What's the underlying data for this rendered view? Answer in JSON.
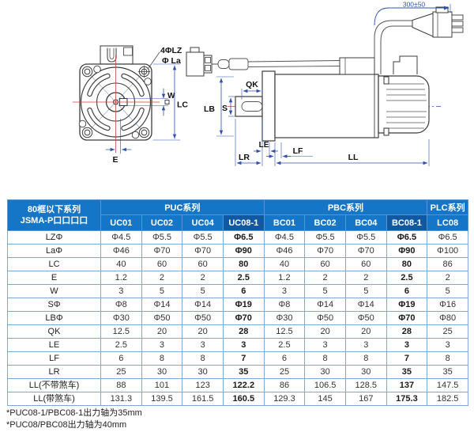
{
  "diagram": {
    "front": {
      "bolt_label": "4ΦLZ",
      "pilot_label": "Φ La",
      "w": "W",
      "lc": "LC",
      "e": "E"
    },
    "side": {
      "qk": "QK",
      "lb": "LB",
      "s": "S",
      "le": "LE",
      "lr": "LR",
      "lf": "LF",
      "ll": "LL",
      "cable_length": "300±50"
    }
  },
  "table": {
    "corner_title_line1": "80框以下系列",
    "corner_title_line2": "JSMA-P口口口口",
    "groups": [
      {
        "label": "PUC系列",
        "span": 4
      },
      {
        "label": "PBC系列",
        "span": 4
      },
      {
        "label": "PLC系列",
        "span": 1
      }
    ],
    "columns": [
      "UC01",
      "UC02",
      "UC04",
      "UC08-1",
      "BC01",
      "BC02",
      "BC04",
      "BC08-1",
      "LC08"
    ],
    "highlight_columns": [
      "UC08-1",
      "BC08-1"
    ],
    "rows": [
      {
        "label": "LZΦ",
        "values": [
          "Φ4.5",
          "Φ5.5",
          "Φ5.5",
          "Φ6.5",
          "Φ4.5",
          "Φ5.5",
          "Φ5.5",
          "Φ6.5",
          "Φ6.5"
        ]
      },
      {
        "label": "LaΦ",
        "values": [
          "Φ46",
          "Φ70",
          "Φ70",
          "Φ90",
          "Φ46",
          "Φ70",
          "Φ70",
          "Φ90",
          "Φ100"
        ]
      },
      {
        "label": "LC",
        "values": [
          "40",
          "60",
          "60",
          "80",
          "40",
          "60",
          "60",
          "80",
          "86"
        ]
      },
      {
        "label": "E",
        "values": [
          "1.2",
          "2",
          "2",
          "2.5",
          "1.2",
          "2",
          "2",
          "2.5",
          "2"
        ]
      },
      {
        "label": "W",
        "values": [
          "3",
          "5",
          "5",
          "6",
          "3",
          "5",
          "5",
          "6",
          "5"
        ]
      },
      {
        "label": "SΦ",
        "values": [
          "Φ8",
          "Φ14",
          "Φ14",
          "Φ19",
          "Φ8",
          "Φ14",
          "Φ14",
          "Φ19",
          "Φ16"
        ]
      },
      {
        "label": "LBΦ",
        "values": [
          "Φ30",
          "Φ50",
          "Φ50",
          "Φ70",
          "Φ30",
          "Φ50",
          "Φ50",
          "Φ70",
          "Φ80"
        ]
      },
      {
        "label": "QK",
        "values": [
          "12.5",
          "20",
          "20",
          "28",
          "12.5",
          "20",
          "20",
          "28",
          "25"
        ]
      },
      {
        "label": "LE",
        "values": [
          "2.5",
          "3",
          "3",
          "3",
          "2.5",
          "3",
          "3",
          "3",
          "3"
        ]
      },
      {
        "label": "LF",
        "values": [
          "6",
          "8",
          "8",
          "7",
          "6",
          "8",
          "8",
          "7",
          "8"
        ]
      },
      {
        "label": "LR",
        "values": [
          "25",
          "30",
          "30",
          "35",
          "25",
          "30",
          "30",
          "35",
          "35"
        ]
      },
      {
        "label": "LL(不带煞车)",
        "values": [
          "88",
          "101",
          "123",
          "122.2",
          "86",
          "106.5",
          "128.5",
          "137",
          "147.5"
        ]
      },
      {
        "label": "LL(带煞车)",
        "values": [
          "131.3",
          "139.5",
          "161.5",
          "160.5",
          "129.3",
          "145",
          "167",
          "175.3",
          "182.5"
        ]
      }
    ]
  },
  "footnotes": [
    "*PUC08-1/PBC08-1出力轴为35mm",
    "*PUC08/PBC08出力轴为40mm"
  ],
  "colors": {
    "header_blue": "#1576c8",
    "header_highlight": "#1059a2",
    "table_border": "#7ba8da",
    "dimension_blue": "#3050b0",
    "centerline_red": "#c44"
  }
}
